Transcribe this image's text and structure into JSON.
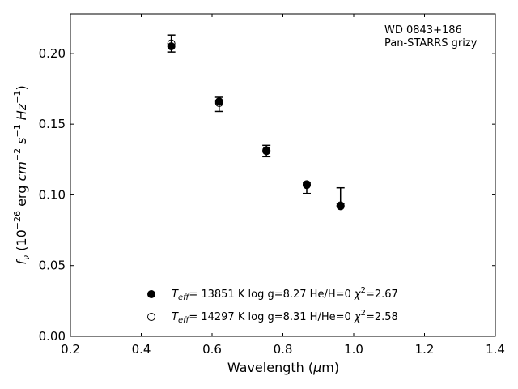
{
  "chart_data": {
    "type": "scatter",
    "annotation": [
      "WD 0843+186",
      "Pan-STARRS grizy"
    ],
    "xlabel": {
      "prefix": "Wavelength (",
      "unit_symbol": "μ",
      "unit_rest": "m)"
    },
    "ylabel": {
      "f": "f",
      "nu": "ν",
      "open": " (10",
      "e1": "−26",
      "mid": " erg ",
      "cm": "cm",
      "e2": "−2",
      "s": " s",
      "e3": "−1",
      "hz": " Hz",
      "e4": "−1",
      "close": ")"
    },
    "xlim": [
      0.2,
      1.4
    ],
    "ylim": [
      0.0,
      0.228
    ],
    "xticks": [
      0.2,
      0.4,
      0.6,
      0.8,
      1.0,
      1.2,
      1.4
    ],
    "xtick_labels": [
      "0.2",
      "0.4",
      "0.6",
      "0.8",
      "1.0",
      "1.2",
      "1.4"
    ],
    "yticks": [
      0.0,
      0.05,
      0.1,
      0.15,
      0.2
    ],
    "ytick_labels": [
      "0.00",
      "0.05",
      "0.10",
      "0.15",
      "0.20"
    ],
    "observed": {
      "x": [
        0.4849,
        0.6201,
        0.7535,
        0.8674,
        0.9628
      ],
      "y": [
        0.207,
        0.164,
        0.131,
        0.105,
        0.0995
      ],
      "yerr": [
        0.006,
        0.005,
        0.004,
        0.004,
        0.0055
      ]
    },
    "series": [
      {
        "name": {
          "t": "T",
          "eff": "eff",
          "mid": "= 13851 K  log g=8.27  He/H=0  ",
          "chi": "χ",
          "sq": "2",
          "val": "=2.67"
        },
        "marker": "filled",
        "x": [
          0.4849,
          0.6201,
          0.7535,
          0.8674,
          0.9628
        ],
        "y": [
          0.205,
          0.166,
          0.131,
          0.107,
          0.092
        ]
      },
      {
        "name": {
          "t": "T",
          "eff": "eff",
          "mid": "= 14297 K  log g=8.31  H/He=0  ",
          "chi": "χ",
          "sq": "2",
          "val": "=2.58"
        },
        "marker": "open",
        "x": [
          0.4849,
          0.6201,
          0.7535,
          0.8674,
          0.9628
        ],
        "y": [
          0.207,
          0.165,
          0.1315,
          0.1075,
          0.0925
        ]
      }
    ],
    "legend_position": "lower-center",
    "grid": false
  }
}
